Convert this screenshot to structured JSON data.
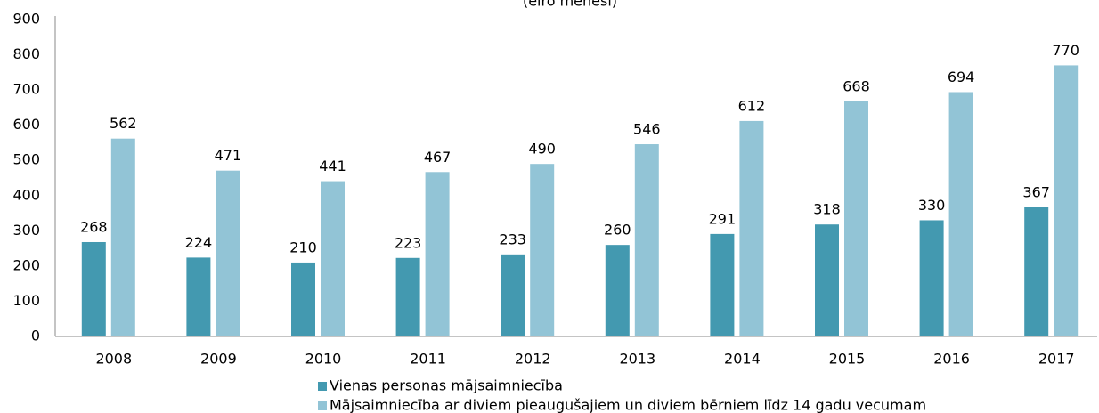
{
  "chart_data": {
    "type": "bar",
    "subtitle": "(eiro mēnesī)",
    "categories": [
      "2008",
      "2009",
      "2010",
      "2011",
      "2012",
      "2013",
      "2014",
      "2015",
      "2016",
      "2017"
    ],
    "series": [
      {
        "name": "Vienas personas mājsaimniecība",
        "color": "#4399b0",
        "values": [
          268,
          224,
          210,
          223,
          233,
          260,
          291,
          318,
          330,
          367
        ]
      },
      {
        "name": "Mājsaimniecība ar diviem pieaugušajiem un diviem bērniem līdz 14 gadu vecumam",
        "color": "#92c4d6",
        "values": [
          562,
          471,
          441,
          467,
          490,
          546,
          612,
          668,
          694,
          770
        ]
      }
    ],
    "ylim": [
      0,
      900
    ],
    "yticks": [
      0,
      100,
      200,
      300,
      400,
      500,
      600,
      700,
      800,
      900
    ],
    "grid": false
  }
}
